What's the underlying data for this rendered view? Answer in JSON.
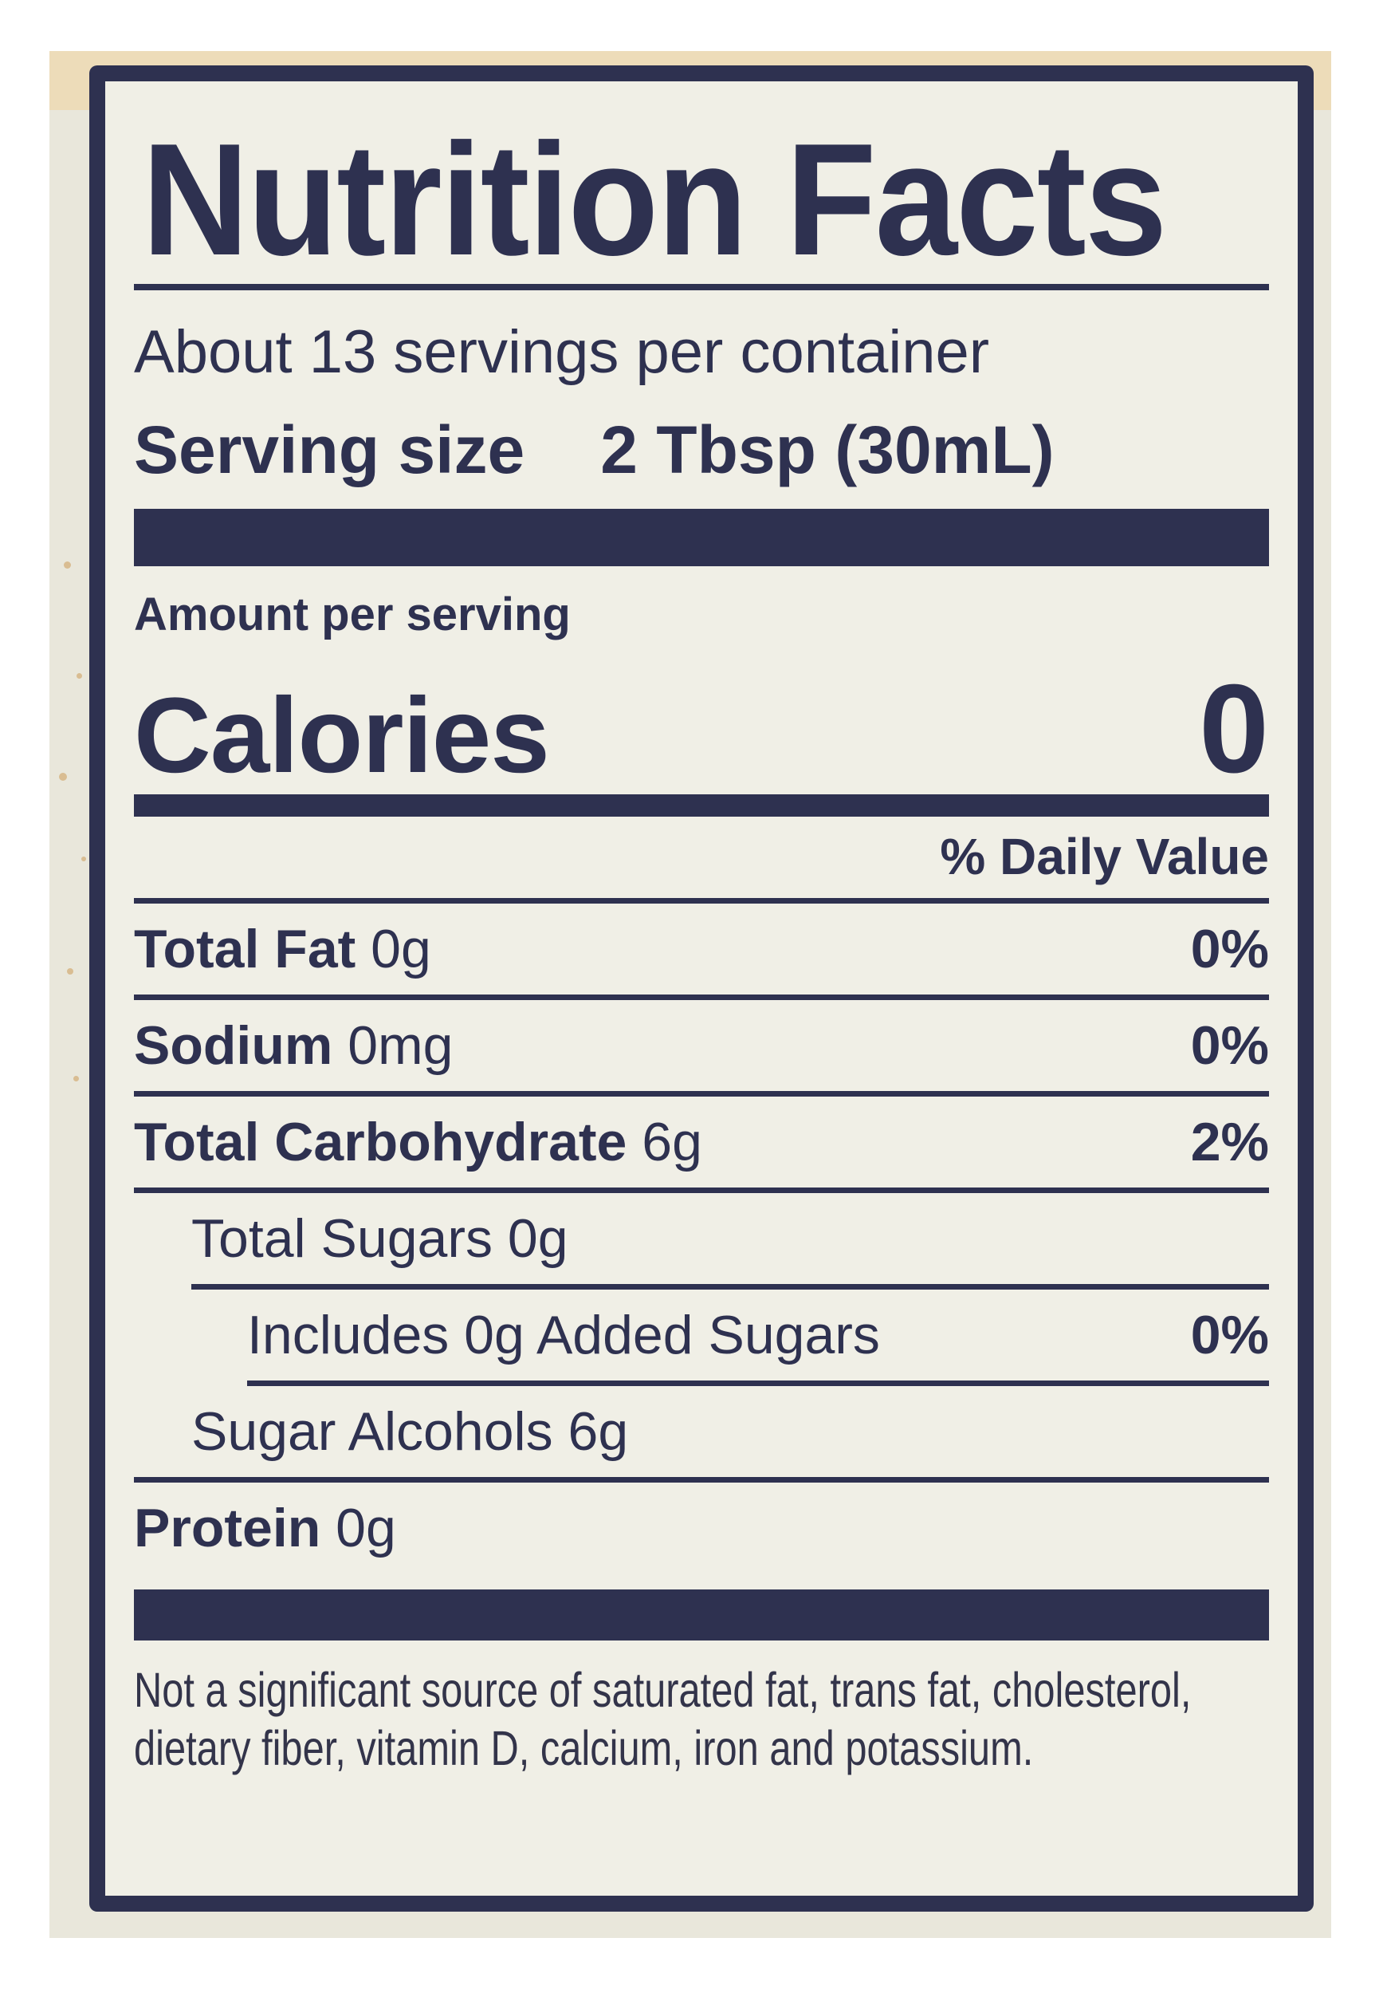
{
  "label": {
    "title": "Nutrition Facts",
    "servings_per_container": "About 13 servings per container",
    "serving_size_label": "Serving size",
    "serving_size_value": "2 Tbsp (30mL)",
    "amount_per_serving": "Amount per serving",
    "calories_label": "Calories",
    "calories_value": "0",
    "daily_value_header": "% Daily Value",
    "rows": [
      {
        "name": "Total Fat",
        "amount": "0g",
        "dv": "0%",
        "bold": true,
        "indent": 0,
        "rule_after": "full"
      },
      {
        "name": "Sodium",
        "amount": "0mg",
        "dv": "0%",
        "bold": true,
        "indent": 0,
        "rule_after": "full"
      },
      {
        "name": "Total Carbohydrate",
        "amount": "6g",
        "dv": "2%",
        "bold": true,
        "indent": 0,
        "rule_after": "full"
      },
      {
        "name": "Total Sugars",
        "amount": "0g",
        "dv": "",
        "bold": false,
        "indent": 1,
        "rule_after": "indent1"
      },
      {
        "name": "Includes 0g Added Sugars",
        "amount": "",
        "dv": "0%",
        "bold": false,
        "indent": 2,
        "rule_after": "indent2"
      },
      {
        "name": "Sugar Alcohols",
        "amount": "6g",
        "dv": "",
        "bold": false,
        "indent": 1,
        "rule_after": "full"
      },
      {
        "name": "Protein",
        "amount": "0g",
        "dv": "",
        "bold": true,
        "indent": 0,
        "rule_after": "none"
      }
    ],
    "footnote": "Not a significant source of saturated fat, trans fat, cholesterol, dietary fiber, vitamin D, calcium, iron and potassium."
  },
  "colors": {
    "navy": "#2e3150",
    "sticker_background": "#f0efe6",
    "photo_background": "#e9e7db",
    "tan_band": "#eddcb9"
  }
}
